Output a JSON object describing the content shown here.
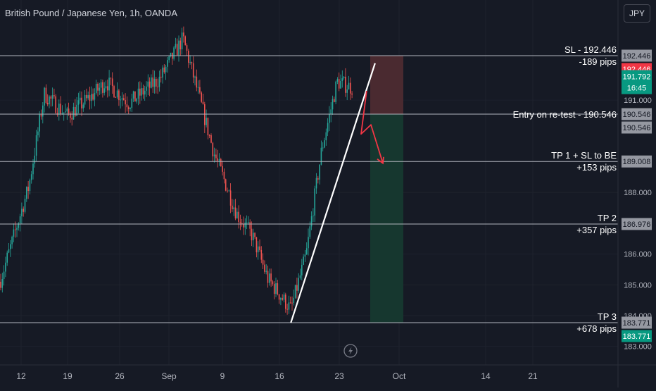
{
  "header": {
    "symbol": "British Pound / Japanese Yen, 1h, OANDA",
    "currency": "JPY"
  },
  "colors": {
    "background": "#161a25",
    "grid": "#1e222d",
    "up": "#26a69a",
    "down": "#ef5350",
    "level_line": "#b2b5be",
    "trendline": "#ffffff",
    "arrow": "#f23645",
    "stop_zone": "#4a2a30",
    "target_zone": "#16372f",
    "tag_grey": "#9598a1",
    "tag_red": "#f23645",
    "tag_green": "#089981"
  },
  "chart_data": {
    "type": "candlestick",
    "title": "British Pound / Japanese Yen, 1h, OANDA",
    "x_ticks": [
      "12",
      "19",
      "26",
      "Sep",
      "9",
      "16",
      "23",
      "Oct",
      "14",
      "21"
    ],
    "y_ticks": [
      191.0,
      188.0,
      186.0,
      185.0,
      184.0,
      183.0
    ],
    "ylim": [
      182.9,
      193.3
    ],
    "grid": true,
    "price_path": [
      {
        "t": "start",
        "p": 185.1
      },
      {
        "t": "8/13",
        "p": 188.2
      },
      {
        "t": "8/15",
        "p": 191.2
      },
      {
        "t": "8/18",
        "p": 190.5
      },
      {
        "t": "8/21",
        "p": 191.1
      },
      {
        "t": "8/23",
        "p": 191.6
      },
      {
        "t": "8/26",
        "p": 190.9
      },
      {
        "t": "8/28",
        "p": 191.3
      },
      {
        "t": "8/30",
        "p": 191.7
      },
      {
        "t": "9/2",
        "p": 193.0
      },
      {
        "t": "9/4",
        "p": 191.2
      },
      {
        "t": "9/6",
        "p": 189.3
      },
      {
        "t": "9/9",
        "p": 187.3
      },
      {
        "t": "9/11",
        "p": 186.6
      },
      {
        "t": "9/13",
        "p": 185.2
      },
      {
        "t": "9/16",
        "p": 184.2
      },
      {
        "t": "9/18",
        "p": 186.0
      },
      {
        "t": "9/20",
        "p": 189.4
      },
      {
        "t": "9/22",
        "p": 191.6
      },
      {
        "t": "9/24",
        "p": 191.4
      }
    ],
    "horizontal_levels": [
      {
        "id": "sl",
        "price": 192.446,
        "label": "SL - 192.446",
        "sublabel": "-189 pips",
        "tag_color": "#f23645"
      },
      {
        "id": "entry",
        "price": 190.546,
        "label": "Entry on re-test - 190.546",
        "sublabel": "",
        "tag_color": "#9598a1"
      },
      {
        "id": "tp1",
        "price": 189.008,
        "label": "TP 1 + SL to BE",
        "sublabel": "+153 pips",
        "tag_color": "#9598a1"
      },
      {
        "id": "tp2",
        "price": 186.976,
        "label": "TP 2",
        "sublabel": "+357 pips",
        "tag_color": "#9598a1"
      },
      {
        "id": "tp3",
        "price": 183.771,
        "label": "TP 3",
        "sublabel": "+678 pips",
        "tag_color": "#9598a1"
      }
    ],
    "trendline": {
      "from": {
        "t": "9/16",
        "p": 183.771
      },
      "to": {
        "t": "9/24",
        "p": 192.2
      }
    },
    "current_price": {
      "price": 191.792,
      "countdown": "16:45",
      "tag_color": "#089981"
    },
    "axis_price_tags": [
      {
        "price": 192.446,
        "label": "192.446",
        "color": "#9598a1"
      },
      {
        "price": 192.446,
        "label": "192.446",
        "color": "#f23645"
      },
      {
        "price": 190.546,
        "label": "190.546",
        "color": "#9598a1"
      },
      {
        "price": 190.546,
        "label": "190.546",
        "color": "#9598a1"
      },
      {
        "price": 189.008,
        "label": "189.008",
        "color": "#9598a1"
      },
      {
        "price": 186.976,
        "label": "186.976",
        "color": "#9598a1"
      },
      {
        "price": 183.771,
        "label": "183.771",
        "color": "#9598a1"
      },
      {
        "price": 183.771,
        "label": "183.771",
        "color": "#089981"
      }
    ],
    "short_position": {
      "entry": 190.546,
      "stop": 192.446,
      "target": 183.771
    }
  }
}
